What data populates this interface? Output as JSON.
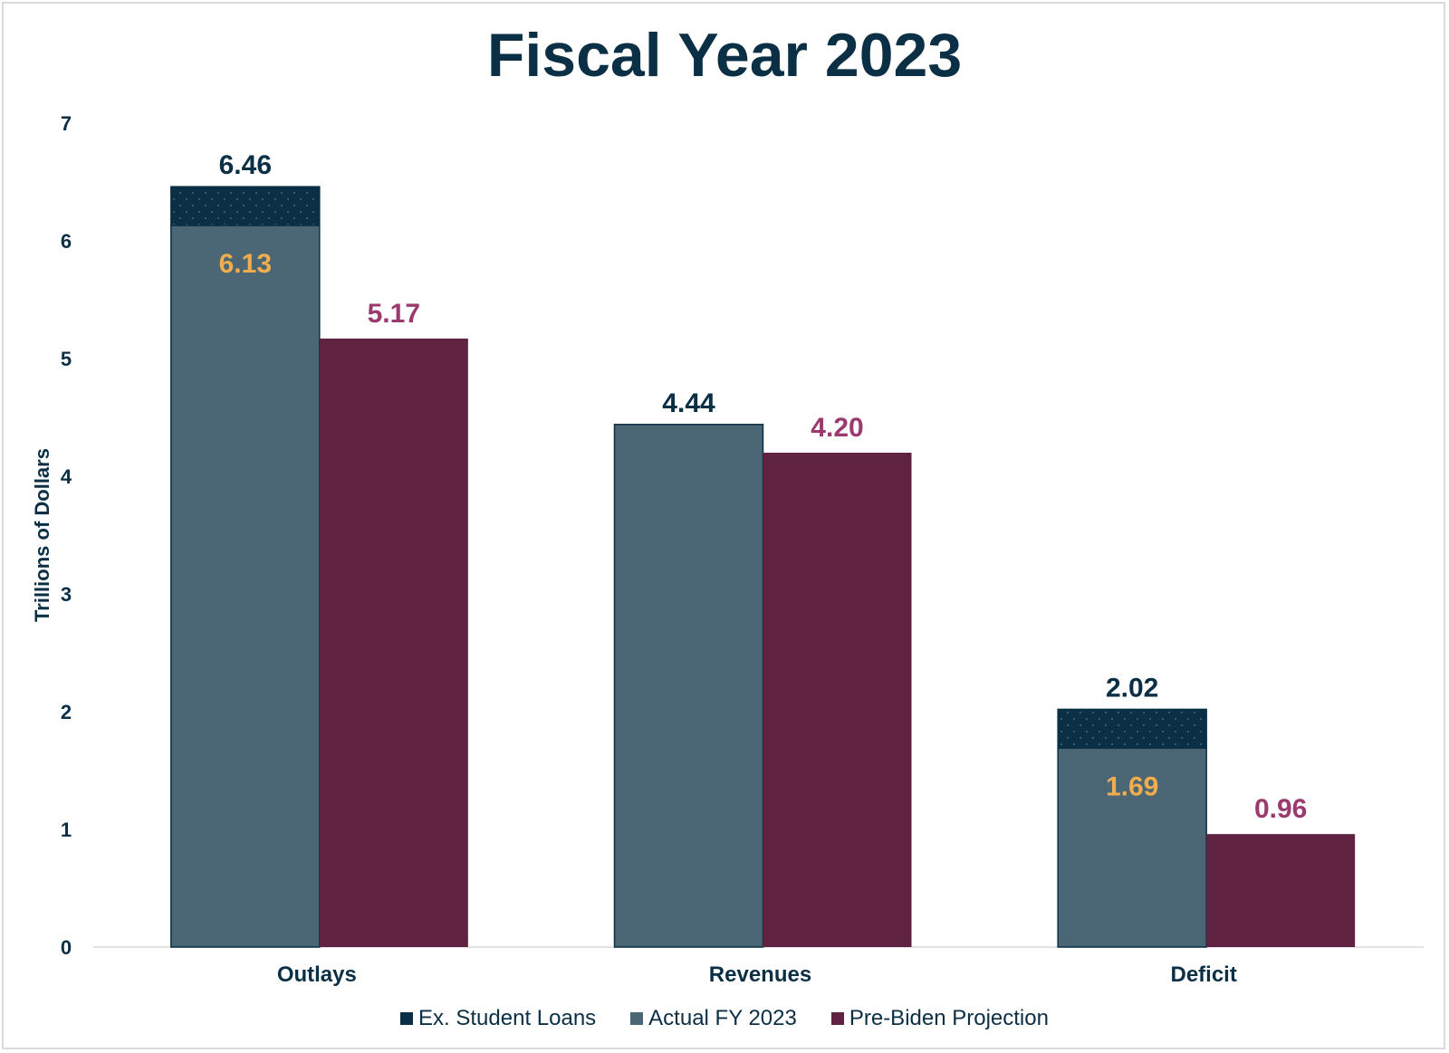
{
  "chart_data": {
    "type": "bar",
    "title": "Fiscal Year 2023",
    "ylabel": "Trillions of Dollars",
    "xlabel": "",
    "ylim": [
      0,
      7
    ],
    "yticks": [
      "0",
      "1",
      "2",
      "3",
      "4",
      "5",
      "6",
      "7"
    ],
    "categories": [
      "Outlays",
      "Revenues",
      "Deficit"
    ],
    "series": [
      {
        "name": "Ex. Student Loans",
        "values": [
          6.46,
          null,
          2.02
        ],
        "labels": [
          "6.46",
          "",
          "2.02"
        ],
        "color": "#0b2f45"
      },
      {
        "name": "Actual FY 2023",
        "values": [
          6.13,
          4.44,
          1.69
        ],
        "labels": [
          "6.13",
          "4.44",
          "1.69"
        ],
        "color": "#4b6675"
      },
      {
        "name": "Pre-Biden Projection",
        "values": [
          5.17,
          4.2,
          0.96
        ],
        "labels": [
          "5.17",
          "4.20",
          "0.96"
        ],
        "color": "#5f2240"
      }
    ],
    "label_colors": {
      "ex_student_loans": "#0b2f45",
      "actual_inside": "#f0ad4e",
      "actual_top": "#0b2f45",
      "projection": "#9b3a6e"
    },
    "grid": false,
    "legend_position": "bottom"
  }
}
